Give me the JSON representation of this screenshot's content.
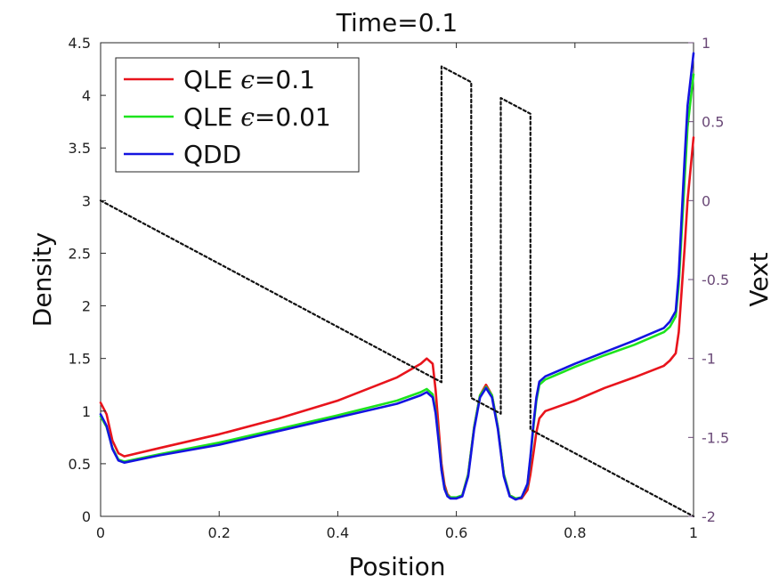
{
  "chart_data": {
    "type": "line",
    "title": "Time=0.1",
    "xlabel": "Position",
    "ylabel": "Density",
    "ylabel_right": "Vext",
    "right_axis_color": "#6b4a78",
    "xlim": [
      0,
      1
    ],
    "ylim": [
      0,
      4.5
    ],
    "ylim_right": [
      -2,
      1
    ],
    "xticks": [
      "0",
      "0.2",
      "0.4",
      "0.6",
      "0.8",
      "1"
    ],
    "yticks": [
      "0",
      "0.5",
      "1",
      "1.5",
      "2",
      "2.5",
      "3",
      "3.5",
      "4",
      "4.5"
    ],
    "yticks_right": [
      "-2",
      "-1.5",
      "-1",
      "-0.5",
      "0",
      "0.5",
      "1"
    ],
    "legend_position": "top-left",
    "series": [
      {
        "name": "QLE ϵ=0.1",
        "name_prefix": "QLE ",
        "name_symbol": "ϵ",
        "name_suffix": "=0.1",
        "color": "#e8141c",
        "axis": "left",
        "x": [
          0,
          0.01,
          0.02,
          0.03,
          0.04,
          0.1,
          0.2,
          0.3,
          0.4,
          0.5,
          0.54,
          0.55,
          0.56,
          0.565,
          0.57,
          0.575,
          0.58,
          0.585,
          0.59,
          0.6,
          0.61,
          0.62,
          0.63,
          0.64,
          0.65,
          0.66,
          0.67,
          0.68,
          0.69,
          0.7,
          0.71,
          0.72,
          0.725,
          0.73,
          0.735,
          0.74,
          0.75,
          0.8,
          0.85,
          0.9,
          0.95,
          0.96,
          0.97,
          0.975,
          0.98,
          0.985,
          0.99,
          1.0
        ],
        "y": [
          1.08,
          0.97,
          0.72,
          0.6,
          0.57,
          0.65,
          0.78,
          0.93,
          1.1,
          1.32,
          1.45,
          1.5,
          1.45,
          1.2,
          0.85,
          0.5,
          0.3,
          0.21,
          0.18,
          0.17,
          0.2,
          0.4,
          0.85,
          1.15,
          1.25,
          1.15,
          0.85,
          0.4,
          0.2,
          0.17,
          0.17,
          0.25,
          0.4,
          0.6,
          0.8,
          0.93,
          1.0,
          1.1,
          1.22,
          1.32,
          1.43,
          1.48,
          1.55,
          1.75,
          2.15,
          2.55,
          3.0,
          3.6
        ]
      },
      {
        "name": "QLE ϵ=0.01",
        "name_prefix": "QLE ",
        "name_symbol": "ϵ",
        "name_suffix": "=0.01",
        "color": "#1de31d",
        "axis": "left",
        "x": [
          0,
          0.01,
          0.02,
          0.03,
          0.04,
          0.1,
          0.2,
          0.3,
          0.4,
          0.5,
          0.54,
          0.55,
          0.56,
          0.565,
          0.57,
          0.575,
          0.58,
          0.585,
          0.59,
          0.6,
          0.61,
          0.62,
          0.63,
          0.64,
          0.65,
          0.66,
          0.67,
          0.68,
          0.69,
          0.7,
          0.71,
          0.72,
          0.725,
          0.73,
          0.735,
          0.74,
          0.75,
          0.8,
          0.85,
          0.9,
          0.95,
          0.96,
          0.97,
          0.975,
          0.98,
          0.985,
          0.99,
          1.0
        ],
        "y": [
          0.95,
          0.85,
          0.65,
          0.54,
          0.52,
          0.59,
          0.7,
          0.83,
          0.96,
          1.1,
          1.18,
          1.21,
          1.16,
          1.0,
          0.75,
          0.45,
          0.27,
          0.2,
          0.18,
          0.18,
          0.2,
          0.4,
          0.85,
          1.15,
          1.23,
          1.15,
          0.85,
          0.4,
          0.2,
          0.17,
          0.18,
          0.3,
          0.55,
          0.85,
          1.1,
          1.25,
          1.3,
          1.42,
          1.53,
          1.63,
          1.75,
          1.8,
          1.9,
          2.2,
          2.7,
          3.2,
          3.7,
          4.2
        ]
      },
      {
        "name": "QDD",
        "name_prefix": "QDD",
        "name_symbol": "",
        "name_suffix": "",
        "color": "#1414e0",
        "axis": "left",
        "x": [
          0,
          0.01,
          0.02,
          0.03,
          0.04,
          0.1,
          0.2,
          0.3,
          0.4,
          0.5,
          0.54,
          0.55,
          0.56,
          0.565,
          0.57,
          0.575,
          0.58,
          0.585,
          0.59,
          0.6,
          0.61,
          0.62,
          0.63,
          0.64,
          0.65,
          0.66,
          0.67,
          0.68,
          0.69,
          0.7,
          0.71,
          0.72,
          0.725,
          0.73,
          0.735,
          0.74,
          0.75,
          0.8,
          0.85,
          0.9,
          0.95,
          0.96,
          0.97,
          0.975,
          0.98,
          0.985,
          0.99,
          1.0
        ],
        "y": [
          0.97,
          0.86,
          0.64,
          0.53,
          0.51,
          0.58,
          0.68,
          0.81,
          0.94,
          1.07,
          1.15,
          1.18,
          1.13,
          0.98,
          0.72,
          0.44,
          0.26,
          0.19,
          0.17,
          0.17,
          0.19,
          0.38,
          0.83,
          1.13,
          1.22,
          1.13,
          0.83,
          0.38,
          0.19,
          0.16,
          0.18,
          0.31,
          0.57,
          0.88,
          1.13,
          1.28,
          1.33,
          1.45,
          1.56,
          1.67,
          1.79,
          1.85,
          1.95,
          2.3,
          2.85,
          3.4,
          3.9,
          4.4
        ]
      },
      {
        "name": "Vext",
        "color": "#111111",
        "axis": "right",
        "dashed": true,
        "x": [
          0,
          0.575,
          0.575,
          0.625,
          0.625,
          0.675,
          0.675,
          0.725,
          0.725,
          1.0
        ],
        "y": [
          0,
          -1.15,
          0.85,
          0.75,
          -1.25,
          -1.35,
          0.65,
          0.55,
          -1.45,
          -2.0
        ]
      }
    ]
  }
}
